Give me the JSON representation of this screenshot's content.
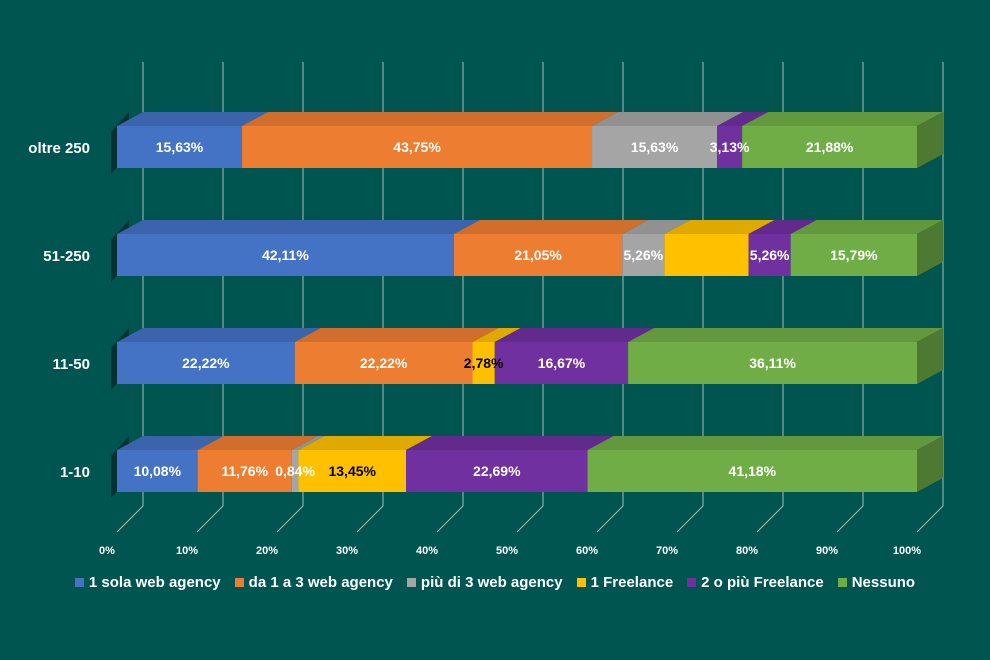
{
  "chart_data": {
    "type": "bar",
    "orientation": "horizontal",
    "stacked": "percent",
    "categories": [
      "oltre 250",
      "51-250",
      "11-50",
      "1-10"
    ],
    "x_ticks": [
      "0%",
      "10%",
      "20%",
      "30%",
      "40%",
      "50%",
      "60%",
      "70%",
      "80%",
      "90%",
      "100%"
    ],
    "xlim": [
      0,
      100
    ],
    "grid": true,
    "legend_position": "bottom",
    "series": [
      {
        "name": "1 sola web agency",
        "color": "#4472C4",
        "values": [
          15.63,
          42.11,
          22.22,
          10.08
        ],
        "labels": [
          "15,63%",
          "42,11%",
          "22,22%",
          "10,08%"
        ]
      },
      {
        "name": "da 1 a 3 web agency",
        "color": "#ED7D31",
        "values": [
          43.75,
          21.05,
          22.22,
          11.76
        ],
        "labels": [
          "43,75%",
          "21,05%",
          "22,22%",
          "11,76%"
        ]
      },
      {
        "name": "più di 3 web agency",
        "color": "#A5A5A5",
        "values": [
          15.63,
          5.26,
          0,
          0.84
        ],
        "labels": [
          "15,63%",
          "5,26%",
          "",
          "0,84%"
        ]
      },
      {
        "name": "1 Freelance",
        "color": "#FFC000",
        "values": [
          0,
          10.53,
          2.78,
          13.45
        ],
        "labels": [
          "",
          "",
          "2,78%",
          "13,45%"
        ]
      },
      {
        "name": "2 o più Freelance",
        "color": "#7030A0",
        "values": [
          3.13,
          5.26,
          16.67,
          22.69
        ],
        "labels": [
          "3,13%",
          "5,26%",
          "16,67%",
          "22,69%"
        ]
      },
      {
        "name": "Nessuno",
        "color": "#70AD47",
        "values": [
          21.88,
          15.79,
          36.11,
          41.18
        ],
        "labels": [
          "21,88%",
          "15,79%",
          "36,11%",
          "41,18%"
        ]
      }
    ]
  }
}
